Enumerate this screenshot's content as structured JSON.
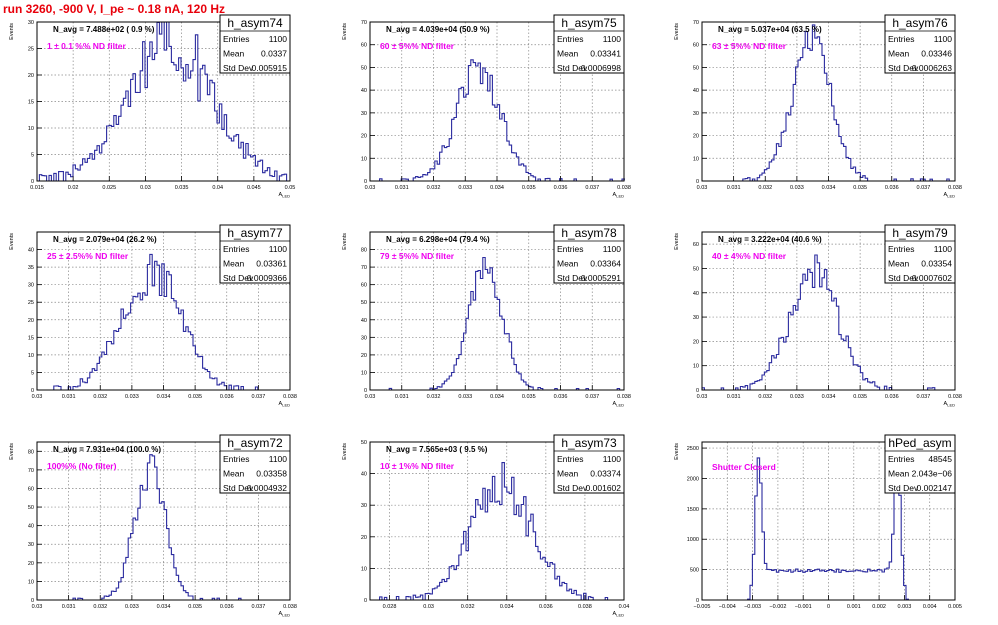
{
  "page": {
    "title": "run 3260,  -900 V, I_pe ~ 0.18 nA, 120 Hz",
    "title_color": "#e8000b"
  },
  "colors": {
    "histogram": "#2b2b9f",
    "annotation": "#ee00ee",
    "frame": "#000000",
    "grid": "#888888"
  },
  "chart_data": [
    {
      "type": "histogram",
      "name": "h_asym74",
      "ylabel": "Events",
      "xlabel": "A_LED",
      "xlim": [
        0.015,
        0.05
      ],
      "ylim": [
        0,
        30
      ],
      "xticks": [
        0.015,
        0.02,
        0.025,
        0.03,
        0.035,
        0.04,
        0.045,
        0.05
      ],
      "yticks": [
        0,
        5,
        10,
        15,
        20,
        25,
        30
      ],
      "tick_labels_x": [
        "0.015",
        "0.02",
        "0.025",
        "0.03",
        "0.035",
        "0.04",
        "0.045",
        "0.05"
      ],
      "tick_labels_y": [
        "0",
        "5",
        "10",
        "15",
        "20",
        "25",
        "30"
      ],
      "stats": {
        "entries": 1100,
        "mean": 0.0337,
        "std_dev": 0.005915
      },
      "stats_labels": [
        "Entries",
        "Mean",
        "Std Dev"
      ],
      "stats_values": [
        "1100",
        "0.0337",
        "0.005915"
      ],
      "n_avg_text": "N_avg = 7.488e+02 ( 0.9 %)",
      "filter_text": "1 ± 0.1 %% ND filter",
      "mean": 0.0337,
      "std_dev": 0.005915,
      "peak": 26,
      "noise": 0.25,
      "grid": true
    },
    {
      "type": "histogram",
      "name": "h_asym75",
      "ylabel": "Events",
      "xlabel": "A_LED",
      "xlim": [
        0.03,
        0.038
      ],
      "ylim": [
        0,
        70
      ],
      "xticks": [
        0.03,
        0.031,
        0.032,
        0.033,
        0.034,
        0.035,
        0.036,
        0.037,
        0.038
      ],
      "yticks": [
        0,
        10,
        20,
        30,
        40,
        50,
        60,
        70
      ],
      "tick_labels_x": [
        "0.03",
        "0.031",
        "0.032",
        "0.033",
        "0.034",
        "0.035",
        "0.036",
        "0.037",
        "0.038"
      ],
      "tick_labels_y": [
        "0",
        "10",
        "20",
        "30",
        "40",
        "50",
        "60",
        "70"
      ],
      "stats": {
        "entries": 1100,
        "mean": 0.03341,
        "std_dev": 0.0006998
      },
      "stats_labels": [
        "Entries",
        "Mean",
        "Std Dev"
      ],
      "stats_values": [
        "1100",
        "0.03341",
        "0.0006998"
      ],
      "n_avg_text": "N_avg = 4.039e+04 (50.9 %)",
      "filter_text": "60 ± 5%% ND filter",
      "mean": 0.03341,
      "std_dev": 0.0006998,
      "peak": 48,
      "noise": 0.18,
      "grid": true
    },
    {
      "type": "histogram",
      "name": "h_asym76",
      "ylabel": "Events",
      "xlabel": "A_LED",
      "xlim": [
        0.03,
        0.038
      ],
      "ylim": [
        0,
        70
      ],
      "xticks": [
        0.03,
        0.031,
        0.032,
        0.033,
        0.034,
        0.035,
        0.036,
        0.037,
        0.038
      ],
      "yticks": [
        0,
        10,
        20,
        30,
        40,
        50,
        60,
        70
      ],
      "tick_labels_x": [
        "0.03",
        "0.031",
        "0.032",
        "0.033",
        "0.034",
        "0.035",
        "0.036",
        "0.037",
        "0.038"
      ],
      "tick_labels_y": [
        "0",
        "10",
        "20",
        "30",
        "40",
        "50",
        "60",
        "70"
      ],
      "stats": {
        "entries": 1100,
        "mean": 0.03346,
        "std_dev": 0.0006263
      },
      "stats_labels": [
        "Entries",
        "Mean",
        "Std Dev"
      ],
      "stats_values": [
        "1100",
        "0.03346",
        "0.0006263"
      ],
      "n_avg_text": "N_avg = 5.037e+04 (63.5 %)",
      "filter_text": "63 ± 5%% ND filter",
      "mean": 0.03346,
      "std_dev": 0.0006263,
      "peak": 60,
      "noise": 0.16,
      "grid": true
    },
    {
      "type": "histogram",
      "name": "h_asym77",
      "ylabel": "Events",
      "xlabel": "A_LED",
      "xlim": [
        0.03,
        0.038
      ],
      "ylim": [
        0,
        45
      ],
      "xticks": [
        0.03,
        0.031,
        0.032,
        0.033,
        0.034,
        0.035,
        0.036,
        0.037,
        0.038
      ],
      "yticks": [
        0,
        5,
        10,
        15,
        20,
        25,
        30,
        35,
        40
      ],
      "tick_labels_x": [
        "0.03",
        "0.031",
        "0.032",
        "0.033",
        "0.034",
        "0.035",
        "0.036",
        "0.037",
        "0.038"
      ],
      "tick_labels_y": [
        "0",
        "5",
        "10",
        "15",
        "20",
        "25",
        "30",
        "35",
        "40"
      ],
      "stats": {
        "entries": 1100,
        "mean": 0.03361,
        "std_dev": 0.0009366
      },
      "stats_labels": [
        "Entries",
        "Mean",
        "Std Dev"
      ],
      "stats_values": [
        "1100",
        "0.03361",
        "0.0009366"
      ],
      "n_avg_text": "N_avg = 2.079e+04 (26.2 %)",
      "filter_text": "25 ± 2.5%% ND filter",
      "mean": 0.03361,
      "std_dev": 0.0009366,
      "peak": 34,
      "noise": 0.2,
      "grid": true
    },
    {
      "type": "histogram",
      "name": "h_asym78",
      "ylabel": "Events",
      "xlabel": "A_LED",
      "xlim": [
        0.03,
        0.038
      ],
      "ylim": [
        0,
        90
      ],
      "xticks": [
        0.03,
        0.031,
        0.032,
        0.033,
        0.034,
        0.035,
        0.036,
        0.037,
        0.038
      ],
      "yticks": [
        0,
        10,
        20,
        30,
        40,
        50,
        60,
        70,
        80
      ],
      "tick_labels_x": [
        "0.03",
        "0.031",
        "0.032",
        "0.033",
        "0.034",
        "0.035",
        "0.036",
        "0.037",
        "0.038"
      ],
      "tick_labels_y": [
        "0",
        "10",
        "20",
        "30",
        "40",
        "50",
        "60",
        "70",
        "80"
      ],
      "stats": {
        "entries": 1100,
        "mean": 0.03364,
        "std_dev": 0.0005291
      },
      "stats_labels": [
        "Entries",
        "Mean",
        "Std Dev"
      ],
      "stats_values": [
        "1100",
        "0.03364",
        "0.0005291"
      ],
      "n_avg_text": "N_avg = 6.298e+04 (79.4 %)",
      "filter_text": "79 ± 5%% ND filter",
      "mean": 0.03364,
      "std_dev": 0.0005291,
      "peak": 70,
      "noise": 0.15,
      "grid": true
    },
    {
      "type": "histogram",
      "name": "h_asym79",
      "ylabel": "Events",
      "xlabel": "A_LED",
      "xlim": [
        0.03,
        0.038
      ],
      "ylim": [
        0,
        65
      ],
      "xticks": [
        0.03,
        0.031,
        0.032,
        0.033,
        0.034,
        0.035,
        0.036,
        0.037,
        0.038
      ],
      "yticks": [
        0,
        10,
        20,
        30,
        40,
        50,
        60
      ],
      "tick_labels_x": [
        "0.03",
        "0.031",
        "0.032",
        "0.033",
        "0.034",
        "0.035",
        "0.036",
        "0.037",
        "0.038"
      ],
      "tick_labels_y": [
        "0",
        "10",
        "20",
        "30",
        "40",
        "50",
        "60"
      ],
      "stats": {
        "entries": 1100,
        "mean": 0.03354,
        "std_dev": 0.0007602
      },
      "stats_labels": [
        "Entries",
        "Mean",
        "Std Dev"
      ],
      "stats_values": [
        "1100",
        "0.03354",
        "0.0007602"
      ],
      "n_avg_text": "N_avg = 3.222e+04 (40.6 %)",
      "filter_text": "40 ± 4%% ND filter",
      "mean": 0.03354,
      "std_dev": 0.0007602,
      "peak": 50,
      "noise": 0.17,
      "grid": true
    },
    {
      "type": "histogram",
      "name": "h_asym72",
      "ylabel": "Events",
      "xlabel": "A_LED",
      "xlim": [
        0.03,
        0.038
      ],
      "ylim": [
        0,
        85
      ],
      "xticks": [
        0.03,
        0.031,
        0.032,
        0.033,
        0.034,
        0.035,
        0.036,
        0.037,
        0.038
      ],
      "yticks": [
        0,
        10,
        20,
        30,
        40,
        50,
        60,
        70,
        80
      ],
      "tick_labels_x": [
        "0.03",
        "0.031",
        "0.032",
        "0.033",
        "0.034",
        "0.035",
        "0.036",
        "0.037",
        "0.038"
      ],
      "tick_labels_y": [
        "0",
        "10",
        "20",
        "30",
        "40",
        "50",
        "60",
        "70",
        "80"
      ],
      "stats": {
        "entries": 1100,
        "mean": 0.03358,
        "std_dev": 0.0004932
      },
      "stats_labels": [
        "Entries",
        "Mean",
        "Std Dev"
      ],
      "stats_values": [
        "1100",
        "0.03358",
        "0.0004932"
      ],
      "n_avg_text": "N_avg = 7.931e+04 (100.0 %)",
      "filter_text": "100%% (No filter)",
      "mean": 0.03358,
      "std_dev": 0.0004932,
      "peak": 70,
      "noise": 0.15,
      "grid": true
    },
    {
      "type": "histogram",
      "name": "h_asym73",
      "ylabel": "Events",
      "xlabel": "A_LED",
      "xlim": [
        0.027,
        0.04
      ],
      "ylim": [
        0,
        50
      ],
      "xticks": [
        0.028,
        0.03,
        0.032,
        0.034,
        0.036,
        0.038,
        0.04
      ],
      "yticks": [
        0,
        10,
        20,
        30,
        40,
        50
      ],
      "tick_labels_x": [
        "0.028",
        "0.03",
        "0.032",
        "0.034",
        "0.036",
        "0.038",
        "0.04"
      ],
      "tick_labels_y": [
        "0",
        "10",
        "20",
        "30",
        "40",
        "50"
      ],
      "stats": {
        "entries": 1100,
        "mean": 0.03374,
        "std_dev": 0.001602
      },
      "stats_labels": [
        "Entries",
        "Mean",
        "Std Dev"
      ],
      "stats_values": [
        "1100",
        "0.03374",
        "0.001602"
      ],
      "n_avg_text": "N_avg = 7.565e+03 ( 9.5 %)",
      "filter_text": "10 ± 1%% ND filter",
      "mean": 0.03374,
      "std_dev": 0.001602,
      "peak": 36,
      "noise": 0.22,
      "grid": true
    },
    {
      "type": "histogram",
      "name": "hPed_asym",
      "ylabel": "Events",
      "xlabel": "",
      "xlim": [
        -0.005,
        0.005
      ],
      "ylim": [
        0,
        2600
      ],
      "xticks": [
        -0.005,
        -0.004,
        -0.003,
        -0.002,
        -0.001,
        0,
        0.001,
        0.002,
        0.003,
        0.004,
        0.005
      ],
      "yticks": [
        0,
        500,
        1000,
        1500,
        2000,
        2500
      ],
      "tick_labels_x": [
        "−0.005",
        "−0.004",
        "−0.003",
        "−0.002",
        "−0.001",
        "0",
        "0.001",
        "0.002",
        "0.003",
        "0.004",
        "0.005"
      ],
      "tick_labels_y": [
        "0",
        "500",
        "1000",
        "1500",
        "2000",
        "2500"
      ],
      "stats": {
        "entries": 48545,
        "mean": "2.043e−06",
        "std_dev": 0.002147
      },
      "stats_labels": [
        "Entries",
        "Mean",
        "Std Dev"
      ],
      "stats_values": [
        "48545",
        "2.043e−06",
        "0.002147"
      ],
      "n_avg_text": "",
      "filter_text": "Shutter Closerd",
      "shape": "pedestal",
      "grid": true
    }
  ]
}
